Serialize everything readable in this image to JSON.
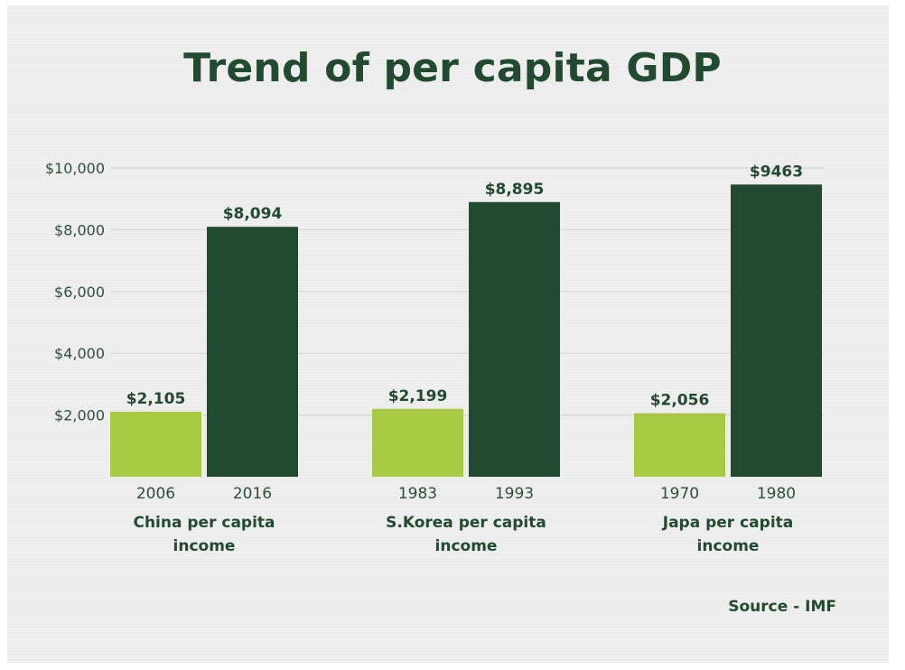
{
  "chart_data": {
    "type": "bar",
    "title": "Trend of per capita GDP",
    "yticks": [
      "$10,000",
      "$8,000",
      "$6,000",
      "$4,000",
      "$2,000"
    ],
    "ytick_values": [
      10000,
      8000,
      6000,
      4000,
      2000
    ],
    "ylim": [
      0,
      10000
    ],
    "grid": true,
    "groups": [
      {
        "label_lines": [
          "China per capita",
          "income"
        ],
        "bars": [
          {
            "year": "2006",
            "value": 2105,
            "label": "$2,105",
            "color": "#a9c944"
          },
          {
            "year": "2016",
            "value": 8094,
            "label": "$8,094",
            "color": "#214a30"
          }
        ]
      },
      {
        "label_lines": [
          "S.Korea per capita",
          "income"
        ],
        "bars": [
          {
            "year": "1983",
            "value": 2199,
            "label": "$2,199",
            "color": "#a9c944"
          },
          {
            "year": "1993",
            "value": 8895,
            "label": "$8,895",
            "color": "#214a30"
          }
        ]
      },
      {
        "label_lines": [
          "Japa per capita",
          "income"
        ],
        "bars": [
          {
            "year": "1970",
            "value": 2056,
            "label": "$2,056",
            "color": "#a9c944"
          },
          {
            "year": "1980",
            "value": 9463,
            "label": "$9463",
            "color": "#214a30"
          }
        ]
      }
    ]
  },
  "footer": {
    "source": "Source - IMF"
  }
}
